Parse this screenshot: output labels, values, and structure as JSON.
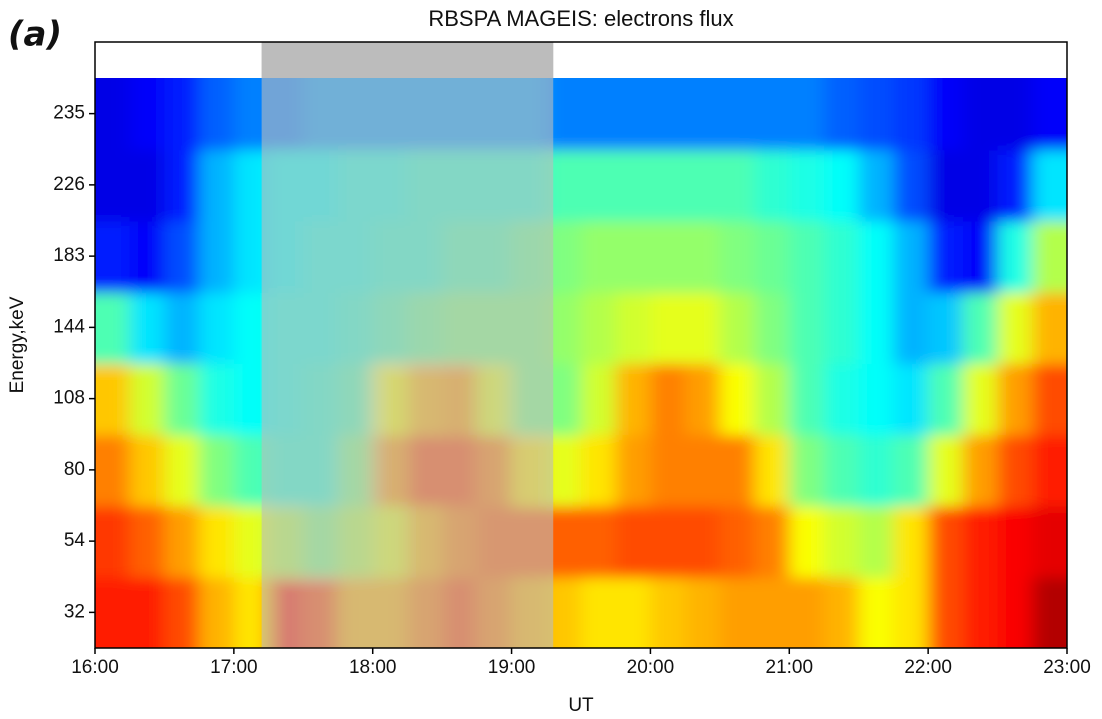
{
  "chart_data": {
    "type": "heatmap",
    "panel_label": "(a)",
    "title": "RBSPA MAGEIS: electrons flux",
    "x_label": "UT",
    "y_label": "Energy,keV",
    "colormap": "jet",
    "zlim": [
      0,
      1
    ],
    "xlim": [
      16,
      23
    ],
    "xticks": [
      {
        "value": 16,
        "label": "16:00"
      },
      {
        "value": 17,
        "label": "17:00"
      },
      {
        "value": 18,
        "label": "18:00"
      },
      {
        "value": 19,
        "label": "19:00"
      },
      {
        "value": 20,
        "label": "20:00"
      },
      {
        "value": 21,
        "label": "21:00"
      },
      {
        "value": 22,
        "label": "22:00"
      },
      {
        "value": 23,
        "label": "23:00"
      }
    ],
    "x": [
      16,
      16.25,
      16.5,
      16.75,
      17,
      17.25,
      17.5,
      17.75,
      18,
      18.25,
      18.5,
      18.75,
      19,
      19.25,
      19.5,
      19.75,
      20,
      20.25,
      20.5,
      20.75,
      21,
      21.25,
      21.5,
      21.75,
      22,
      22.25,
      22.5,
      22.75
    ],
    "y_categories": [
      32,
      54,
      80,
      108,
      144,
      183,
      226,
      235
    ],
    "z": [
      [
        0.85,
        0.85,
        0.8,
        0.7,
        0.65,
        0.85,
        0.8,
        0.7,
        0.7,
        0.75,
        0.8,
        0.75,
        0.7,
        0.68,
        0.65,
        0.65,
        0.68,
        0.7,
        0.72,
        0.72,
        0.72,
        0.7,
        0.62,
        0.65,
        0.8,
        0.85,
        0.88,
        0.95
      ],
      [
        0.82,
        0.78,
        0.72,
        0.65,
        0.6,
        0.55,
        0.5,
        0.55,
        0.6,
        0.7,
        0.75,
        0.78,
        0.78,
        0.78,
        0.78,
        0.8,
        0.8,
        0.8,
        0.78,
        0.75,
        0.62,
        0.58,
        0.55,
        0.65,
        0.8,
        0.85,
        0.88,
        0.9
      ],
      [
        0.75,
        0.68,
        0.6,
        0.5,
        0.45,
        0.42,
        0.42,
        0.5,
        0.72,
        0.8,
        0.8,
        0.75,
        0.65,
        0.6,
        0.65,
        0.72,
        0.75,
        0.75,
        0.75,
        0.65,
        0.5,
        0.45,
        0.42,
        0.45,
        0.6,
        0.72,
        0.8,
        0.85
      ],
      [
        0.68,
        0.58,
        0.48,
        0.4,
        0.38,
        0.4,
        0.42,
        0.45,
        0.62,
        0.7,
        0.72,
        0.6,
        0.5,
        0.5,
        0.58,
        0.7,
        0.75,
        0.72,
        0.62,
        0.55,
        0.45,
        0.4,
        0.38,
        0.35,
        0.45,
        0.6,
        0.72,
        0.8
      ],
      [
        0.45,
        0.35,
        0.3,
        0.35,
        0.38,
        0.4,
        0.4,
        0.42,
        0.45,
        0.48,
        0.5,
        0.5,
        0.5,
        0.52,
        0.55,
        0.58,
        0.6,
        0.6,
        0.55,
        0.5,
        0.45,
        0.42,
        0.38,
        0.3,
        0.32,
        0.45,
        0.6,
        0.7
      ],
      [
        0.15,
        0.12,
        0.2,
        0.3,
        0.35,
        0.38,
        0.4,
        0.4,
        0.42,
        0.42,
        0.45,
        0.45,
        0.48,
        0.5,
        0.52,
        0.52,
        0.52,
        0.52,
        0.5,
        0.48,
        0.45,
        0.42,
        0.38,
        0.3,
        0.15,
        0.12,
        0.4,
        0.55
      ],
      [
        0.1,
        0.1,
        0.15,
        0.3,
        0.35,
        0.38,
        0.38,
        0.4,
        0.4,
        0.42,
        0.42,
        0.42,
        0.42,
        0.45,
        0.45,
        0.45,
        0.45,
        0.45,
        0.45,
        0.42,
        0.4,
        0.38,
        0.3,
        0.2,
        0.1,
        0.1,
        0.15,
        0.35
      ],
      [
        0.1,
        0.12,
        0.15,
        0.22,
        0.25,
        0.25,
        0.28,
        0.28,
        0.28,
        0.28,
        0.28,
        0.28,
        0.28,
        0.25,
        0.25,
        0.25,
        0.25,
        0.25,
        0.25,
        0.25,
        0.25,
        0.22,
        0.2,
        0.18,
        0.12,
        0.1,
        0.1,
        0.12
      ]
    ],
    "shade": [
      17.2,
      19.3
    ],
    "shade_color": "#bcbcbc"
  }
}
